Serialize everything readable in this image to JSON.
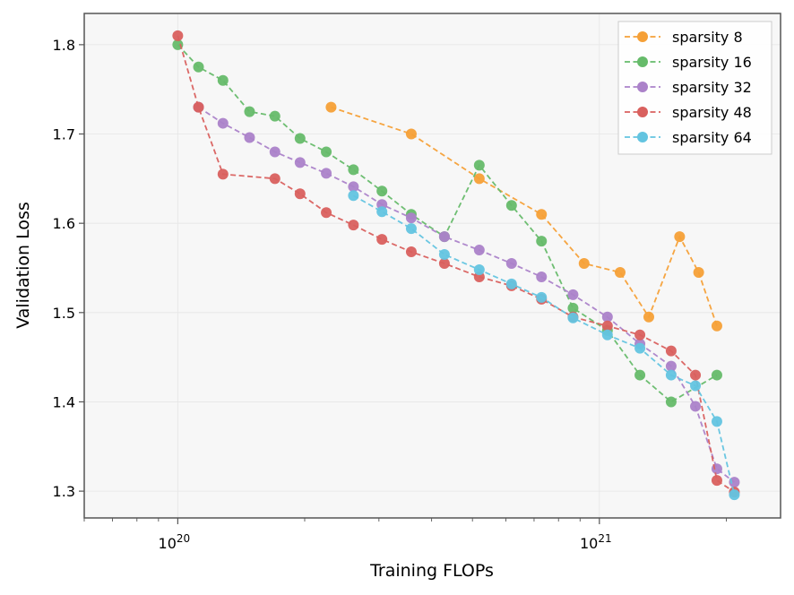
{
  "chart_data": {
    "type": "line",
    "title": "",
    "xlabel": "Training FLOPs",
    "ylabel": "Validation Loss",
    "xscale": "log",
    "xlim": [
      6e+19,
      2.69e+21
    ],
    "ylim": [
      1.27,
      1.835
    ],
    "grid": true,
    "legend_position": "top-right",
    "x_ticks": [
      {
        "value": 1e+20,
        "base": "10",
        "exp": "20"
      },
      {
        "value": 1e+21,
        "base": "10",
        "exp": "21"
      }
    ],
    "y_ticks": [
      {
        "value": 1.3,
        "label": "1.3"
      },
      {
        "value": 1.4,
        "label": "1.4"
      },
      {
        "value": 1.5,
        "label": "1.5"
      },
      {
        "value": 1.6,
        "label": "1.6"
      },
      {
        "value": 1.7,
        "label": "1.7"
      },
      {
        "value": 1.8,
        "label": "1.8"
      }
    ],
    "series": [
      {
        "name": "sparsity 8",
        "color": "#f5a037",
        "x": [
          2.31e+20,
          3.58e+20,
          5.19e+20,
          7.29e+20,
          9.2e+20,
          1.12e+21,
          1.31e+21,
          1.55e+21,
          1.72e+21,
          1.9e+21
        ],
        "y": [
          1.73,
          1.7,
          1.65,
          1.61,
          1.555,
          1.545,
          1.495,
          1.585,
          1.545,
          1.485
        ]
      },
      {
        "name": "sparsity 16",
        "color": "#66bb6a",
        "x": [
          1e+20,
          1.12e+20,
          1.28e+20,
          1.48e+20,
          1.7e+20,
          1.95e+20,
          2.25e+20,
          2.61e+20,
          3.05e+20,
          3.58e+20,
          4.29e+20,
          5.19e+20,
          6.19e+20,
          7.29e+20,
          8.66e+20,
          1.045e+21,
          1.248e+21,
          1.48e+21,
          1.9e+21
        ],
        "y": [
          1.8,
          1.775,
          1.76,
          1.725,
          1.72,
          1.695,
          1.68,
          1.66,
          1.636,
          1.61,
          1.585,
          1.665,
          1.62,
          1.58,
          1.505,
          1.48,
          1.43,
          1.4,
          1.43
        ]
      },
      {
        "name": "sparsity 32",
        "color": "#ab82c9",
        "x": [
          1.12e+20,
          1.28e+20,
          1.48e+20,
          1.7e+20,
          1.95e+20,
          2.25e+20,
          2.61e+20,
          3.05e+20,
          3.58e+20,
          4.29e+20,
          5.19e+20,
          6.19e+20,
          7.29e+20,
          8.66e+20,
          1.045e+21,
          1.248e+21,
          1.48e+21,
          1.69e+21,
          1.9e+21,
          2.09e+21
        ],
        "y": [
          1.73,
          1.712,
          1.696,
          1.68,
          1.668,
          1.656,
          1.641,
          1.621,
          1.606,
          1.585,
          1.57,
          1.555,
          1.54,
          1.52,
          1.495,
          1.465,
          1.44,
          1.395,
          1.325,
          1.31
        ]
      },
      {
        "name": "sparsity 48",
        "color": "#d9605e",
        "x": [
          1e+20,
          1.12e+20,
          1.28e+20,
          1.7e+20,
          1.95e+20,
          2.25e+20,
          2.61e+20,
          3.05e+20,
          3.58e+20,
          4.29e+20,
          5.19e+20,
          6.19e+20,
          7.29e+20,
          8.66e+20,
          1.045e+21,
          1.248e+21,
          1.48e+21,
          1.69e+21,
          1.9e+21,
          2.09e+21
        ],
        "y": [
          1.81,
          1.73,
          1.655,
          1.65,
          1.633,
          1.612,
          1.598,
          1.582,
          1.568,
          1.555,
          1.54,
          1.53,
          1.515,
          1.495,
          1.485,
          1.475,
          1.457,
          1.43,
          1.312,
          1.299
        ]
      },
      {
        "name": "sparsity 64",
        "color": "#63c4e0",
        "x": [
          2.61e+20,
          3.05e+20,
          3.58e+20,
          4.29e+20,
          5.19e+20,
          6.19e+20,
          7.29e+20,
          8.66e+20,
          1.045e+21,
          1.248e+21,
          1.48e+21,
          1.69e+21,
          1.9e+21,
          2.09e+21
        ],
        "y": [
          1.631,
          1.613,
          1.594,
          1.565,
          1.548,
          1.532,
          1.517,
          1.494,
          1.475,
          1.46,
          1.43,
          1.418,
          1.378,
          1.296
        ]
      }
    ]
  }
}
